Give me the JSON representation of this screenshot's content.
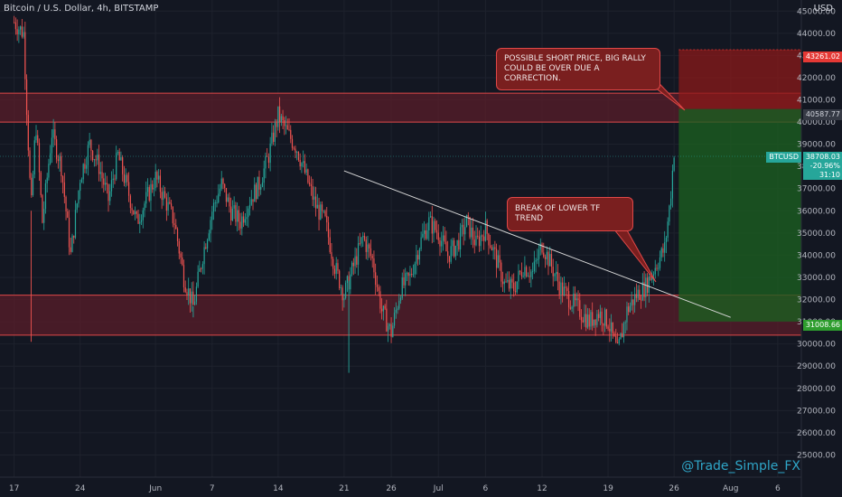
{
  "header": {
    "symbol_title": "Bitcoin / U.S. Dollar, 4h, BITSTAMP",
    "currency": "USD"
  },
  "watermark": "@Trade_Simple_FX",
  "annotations": {
    "short_note": "POSSIBLE SHORT PRICE, BIG RALLY\nCOULD BE OVER DUE A CORRECTION.",
    "break_note": "BREAK OF LOWER TF TREND"
  },
  "price_labels": {
    "stop": "43261.02",
    "entry": "40587.77",
    "ticker": "BTCUSD",
    "last_price": "38708.03",
    "change": "-20.96%",
    "countdown": "31:10",
    "target": "31008.66"
  },
  "colors": {
    "background": "#131722",
    "up": "#26a69a",
    "down": "#ef5350",
    "zone": "#5a1e2a",
    "zone_line": "#e04848",
    "profit": "#1b5e20",
    "loss": "#8b1a1a",
    "trendline": "#d8d8d8",
    "watermark": "#2fa6c8"
  },
  "chart_data": {
    "type": "candlestick",
    "title": "Bitcoin / U.S. Dollar, 4h, BITSTAMP",
    "ylabel": "USD",
    "ylim": [
      24000,
      45500
    ],
    "y_ticks": [
      25000,
      26000,
      27000,
      28000,
      29000,
      30000,
      31000,
      32000,
      33000,
      34000,
      35000,
      36000,
      37000,
      38000,
      39000,
      40000,
      41000,
      42000,
      43000,
      44000,
      45000
    ],
    "x_ticks": [
      {
        "label": "17",
        "day": 0
      },
      {
        "label": "24",
        "day": 7
      },
      {
        "label": "Jun",
        "day": 15
      },
      {
        "label": "7",
        "day": 21
      },
      {
        "label": "14",
        "day": 28
      },
      {
        "label": "21",
        "day": 35
      },
      {
        "label": "26",
        "day": 40
      },
      {
        "label": "Jul",
        "day": 45
      },
      {
        "label": "6",
        "day": 50
      },
      {
        "label": "12",
        "day": 56
      },
      {
        "label": "19",
        "day": 63
      },
      {
        "label": "26",
        "day": 70
      },
      {
        "label": "Aug",
        "day": 76
      },
      {
        "label": "6",
        "day": 81
      }
    ],
    "xlim": [
      -1.5,
      83.5
    ],
    "price_path": [
      [
        0,
        44500
      ],
      [
        1,
        44000
      ],
      [
        1.8,
        36000
      ],
      [
        2.3,
        40000
      ],
      [
        3,
        35500
      ],
      [
        4,
        39500
      ],
      [
        5,
        38000
      ],
      [
        6,
        34000
      ],
      [
        7,
        37500
      ],
      [
        8,
        39000
      ],
      [
        9,
        38000
      ],
      [
        10,
        36500
      ],
      [
        11,
        38500
      ],
      [
        12,
        37000
      ],
      [
        13,
        35500
      ],
      [
        14,
        36500
      ],
      [
        15,
        37500
      ],
      [
        16,
        36500
      ],
      [
        17,
        35500
      ],
      [
        18,
        33000
      ],
      [
        19,
        31700
      ],
      [
        20,
        34000
      ],
      [
        21,
        36000
      ],
      [
        22,
        37200
      ],
      [
        23,
        36000
      ],
      [
        24,
        35500
      ],
      [
        25,
        36500
      ],
      [
        26,
        37200
      ],
      [
        27,
        38500
      ],
      [
        28,
        40300
      ],
      [
        29,
        39500
      ],
      [
        30,
        38800
      ],
      [
        31,
        37500
      ],
      [
        32,
        36200
      ],
      [
        33,
        35500
      ],
      [
        34,
        33500
      ],
      [
        35,
        32200
      ],
      [
        36,
        33500
      ],
      [
        37,
        34800
      ],
      [
        38,
        33800
      ],
      [
        39,
        31500
      ],
      [
        40,
        30500
      ],
      [
        41,
        32500
      ],
      [
        42,
        33000
      ],
      [
        43,
        34500
      ],
      [
        44,
        35500
      ],
      [
        45,
        35000
      ],
      [
        46,
        34000
      ],
      [
        47,
        34500
      ],
      [
        48,
        35500
      ],
      [
        49,
        34500
      ],
      [
        50,
        35200
      ],
      [
        51,
        34000
      ],
      [
        52,
        32700
      ],
      [
        53,
        32500
      ],
      [
        54,
        33500
      ],
      [
        55,
        33200
      ],
      [
        56,
        34500
      ],
      [
        57,
        33500
      ],
      [
        58,
        32500
      ],
      [
        59,
        32000
      ],
      [
        60,
        31500
      ],
      [
        61,
        31000
      ],
      [
        62,
        31400
      ],
      [
        63,
        31000
      ],
      [
        64,
        29600
      ],
      [
        65,
        31500
      ],
      [
        66,
        32200
      ],
      [
        67,
        32600
      ],
      [
        68,
        33500
      ],
      [
        69,
        34300
      ],
      [
        69.6,
        36500
      ],
      [
        70,
        38708
      ]
    ],
    "spikes": [
      {
        "day": 1.8,
        "low": 30100
      },
      {
        "day": 19,
        "low": 31200
      },
      {
        "day": 35.5,
        "low": 28700
      }
    ],
    "zones": [
      {
        "name": "resistance",
        "from": 40000,
        "to": 41300
      },
      {
        "name": "support",
        "from": 30400,
        "to": 32200
      }
    ],
    "trendline": {
      "from": [
        35,
        37800
      ],
      "to": [
        76,
        31200
      ]
    },
    "position": {
      "start_day": 70.5,
      "end_day": 83.5,
      "stop": 43261.02,
      "entry": 40587.77,
      "target": 31008.66
    }
  }
}
